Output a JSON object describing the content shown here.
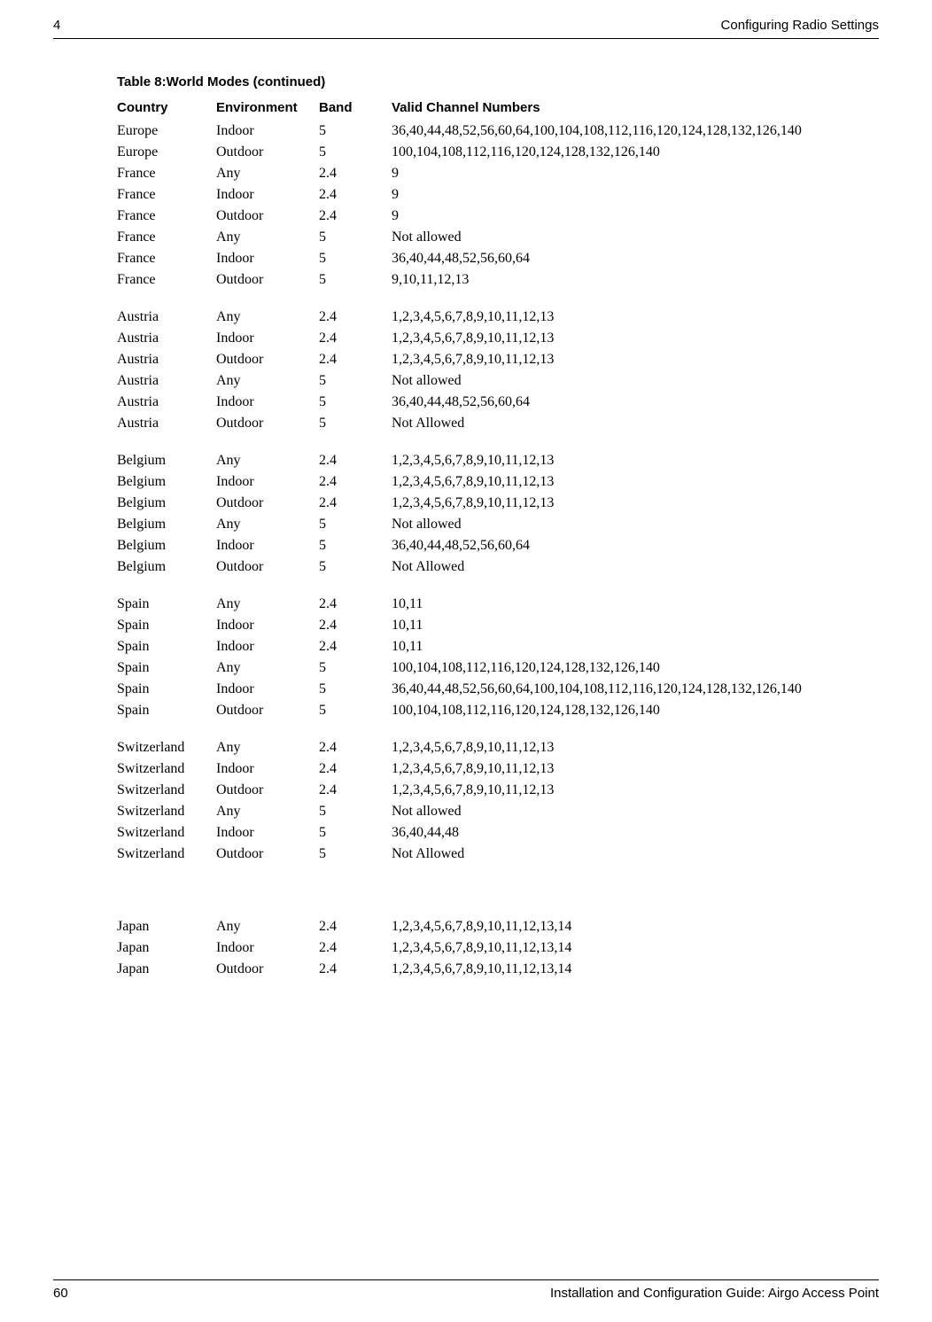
{
  "header": {
    "chapterNum": "4",
    "chapterTitle": "Configuring Radio Settings"
  },
  "footer": {
    "pageNum": "60",
    "guide": "Installation and Configuration Guide: Airgo Access Point"
  },
  "table": {
    "title": "Table 8:World Modes  (continued)",
    "columns": [
      "Country",
      "Environment",
      "Band",
      "Valid Channel Numbers"
    ],
    "rows": [
      {
        "country": "Europe",
        "env": "Indoor",
        "band": "5",
        "channels": "36,40,44,48,52,56,60,64,100,104,108,112,116,120,124,128,132,126,140"
      },
      {
        "country": "Europe",
        "env": "Outdoor",
        "band": "5",
        "channels": "100,104,108,112,116,120,124,128,132,126,140"
      },
      {
        "country": "France",
        "env": "Any",
        "band": "2.4",
        "channels": "9"
      },
      {
        "country": "France",
        "env": "Indoor",
        "band": "2.4",
        "channels": "9"
      },
      {
        "country": "France",
        "env": "Outdoor",
        "band": "2.4",
        "channels": "9"
      },
      {
        "country": "France",
        "env": "Any",
        "band": "5",
        "channels": "Not allowed"
      },
      {
        "country": "France",
        "env": "Indoor",
        "band": "5",
        "channels": "36,40,44,48,52,56,60,64"
      },
      {
        "country": "France",
        "env": "Outdoor",
        "band": "5",
        "channels": "9,10,11,12,13"
      },
      {
        "spacer": true
      },
      {
        "country": "Austria",
        "env": "Any",
        "band": "2.4",
        "channels": "1,2,3,4,5,6,7,8,9,10,11,12,13"
      },
      {
        "country": "Austria",
        "env": "Indoor",
        "band": "2.4",
        "channels": "1,2,3,4,5,6,7,8,9,10,11,12,13"
      },
      {
        "country": "Austria",
        "env": "Outdoor",
        "band": "2.4",
        "channels": "1,2,3,4,5,6,7,8,9,10,11,12,13"
      },
      {
        "country": "Austria",
        "env": "Any",
        "band": "5",
        "channels": "Not allowed"
      },
      {
        "country": "Austria",
        "env": "Indoor",
        "band": "5",
        "channels": "36,40,44,48,52,56,60,64"
      },
      {
        "country": "Austria",
        "env": "Outdoor",
        "band": "5",
        "channels": "Not Allowed"
      },
      {
        "spacer": true
      },
      {
        "country": "Belgium",
        "env": "Any",
        "band": "2.4",
        "channels": "1,2,3,4,5,6,7,8,9,10,11,12,13"
      },
      {
        "country": "Belgium",
        "env": "Indoor",
        "band": "2.4",
        "channels": "1,2,3,4,5,6,7,8,9,10,11,12,13"
      },
      {
        "country": "Belgium",
        "env": "Outdoor",
        "band": "2.4",
        "channels": "1,2,3,4,5,6,7,8,9,10,11,12,13"
      },
      {
        "country": "Belgium",
        "env": "Any",
        "band": "5",
        "channels": "Not allowed"
      },
      {
        "country": "Belgium",
        "env": "Indoor",
        "band": "5",
        "channels": "36,40,44,48,52,56,60,64"
      },
      {
        "country": "Belgium",
        "env": "Outdoor",
        "band": "5",
        "channels": "Not Allowed"
      },
      {
        "spacer": true
      },
      {
        "country": "Spain",
        "env": "Any",
        "band": "2.4",
        "channels": "10,11"
      },
      {
        "country": "Spain",
        "env": "Indoor",
        "band": "2.4",
        "channels": "10,11"
      },
      {
        "country": "Spain",
        "env": "Indoor",
        "band": "2.4",
        "channels": "10,11"
      },
      {
        "country": "Spain",
        "env": "Any",
        "band": "5",
        "channels": "100,104,108,112,116,120,124,128,132,126,140"
      },
      {
        "country": "Spain",
        "env": "Indoor",
        "band": "5",
        "channels": "36,40,44,48,52,56,60,64,100,104,108,112,116,120,124,128,132,126,140"
      },
      {
        "country": "Spain",
        "env": "Outdoor",
        "band": "5",
        "channels": "100,104,108,112,116,120,124,128,132,126,140"
      },
      {
        "spacer": true
      },
      {
        "country": "Switzerland",
        "env": "Any",
        "band": "2.4",
        "channels": "1,2,3,4,5,6,7,8,9,10,11,12,13"
      },
      {
        "country": "Switzerland",
        "env": "Indoor",
        "band": "2.4",
        "channels": "1,2,3,4,5,6,7,8,9,10,11,12,13"
      },
      {
        "country": "Switzerland",
        "env": "Outdoor",
        "band": "2.4",
        "channels": "1,2,3,4,5,6,7,8,9,10,11,12,13"
      },
      {
        "country": "Switzerland",
        "env": "Any",
        "band": "5",
        "channels": "Not allowed"
      },
      {
        "country": "Switzerland",
        "env": "Indoor",
        "band": "5",
        "channels": "36,40,44,48"
      },
      {
        "country": "Switzerland",
        "env": "Outdoor",
        "band": "5",
        "channels": "Not Allowed"
      },
      {
        "bigspacer": true
      },
      {
        "country": "Japan",
        "env": "Any",
        "band": "2.4",
        "channels": "1,2,3,4,5,6,7,8,9,10,11,12,13,14"
      },
      {
        "country": "Japan",
        "env": "Indoor",
        "band": "2.4",
        "channels": "1,2,3,4,5,6,7,8,9,10,11,12,13,14"
      },
      {
        "country": "Japan",
        "env": "Outdoor",
        "band": "2.4",
        "channels": "1,2,3,4,5,6,7,8,9,10,11,12,13,14"
      }
    ]
  },
  "styling": {
    "body_font": "Times New Roman",
    "header_font": "Arial",
    "body_fontsize": 16,
    "header_fontsize": 15,
    "text_color": "#000000",
    "background_color": "#ffffff",
    "border_color": "#000000"
  }
}
